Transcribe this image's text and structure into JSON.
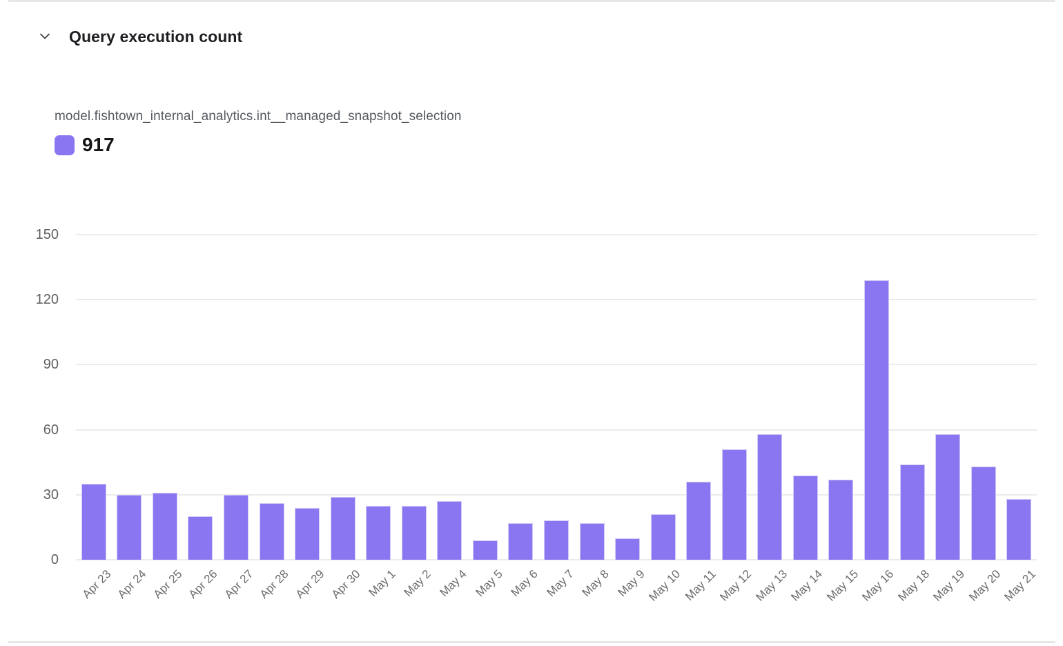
{
  "header": {
    "title": "Query execution count"
  },
  "colors": {
    "accent_purple": "#8a76f1",
    "bar_border": "#d2c9f6",
    "gridline": "#ebebeb",
    "divider": "#e7e7e7",
    "title_text": "#1c1e21",
    "axis_text": "#606060"
  },
  "chart_data": {
    "type": "bar",
    "title": "Query execution count",
    "xlabel": "",
    "ylabel": "",
    "ylim": [
      0,
      150
    ],
    "yticks": [
      0,
      30,
      60,
      90,
      120,
      150
    ],
    "grid": true,
    "legend_position": "top-left",
    "categories": [
      "Apr 23",
      "Apr 24",
      "Apr 25",
      "Apr 26",
      "Apr 27",
      "Apr 28",
      "Apr 29",
      "Apr 30",
      "May 1",
      "May 2",
      "May 4",
      "May 5",
      "May 6",
      "May 7",
      "May 8",
      "May 9",
      "May 10",
      "May 11",
      "May 12",
      "May 13",
      "May 14",
      "May 15",
      "May 16",
      "May 18",
      "May 19",
      "May 20",
      "May 21"
    ],
    "series": [
      {
        "name": "model.fishtown_internal_analytics.int__managed_snapshot_selection",
        "total_label": "917",
        "color": "#8a76f1",
        "values": [
          35,
          30,
          31,
          20,
          30,
          26,
          24,
          29,
          25,
          25,
          27,
          9,
          17,
          18,
          17,
          10,
          21,
          36,
          51,
          58,
          39,
          37,
          129,
          44,
          58,
          43,
          28
        ]
      }
    ]
  }
}
